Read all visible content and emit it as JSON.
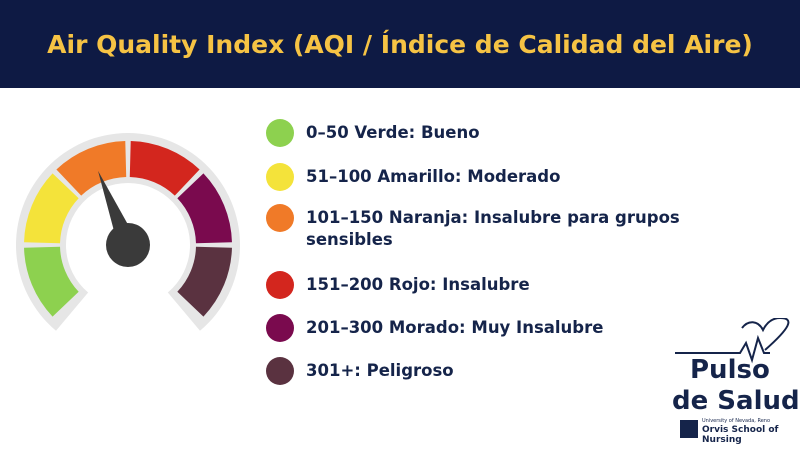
{
  "header": {
    "title": "Air Quality Index (AQI / Índice de Calidad del Aire)"
  },
  "legend": {
    "items": [
      {
        "label": "0–50 Verde: Bueno",
        "color": "#8dd14f"
      },
      {
        "label": "51–100 Amarillo: Moderado",
        "color": "#f4e33a"
      },
      {
        "label": "101–150 Naranja: Insalubre para grupos sensibles",
        "color": "#f07a28"
      },
      {
        "label": "151–200 Rojo: Insalubre",
        "color": "#d3261e"
      },
      {
        "label": "201–300 Morado: Muy Insalubre",
        "color": "#7a0a4e"
      },
      {
        "label": "301+: Peligroso",
        "color": "#5a3240"
      }
    ]
  },
  "logo": {
    "line1": "Pulso",
    "line2": "de Salud",
    "university": "University of Nevada, Reno",
    "school": "Orvis School of Nursing"
  }
}
